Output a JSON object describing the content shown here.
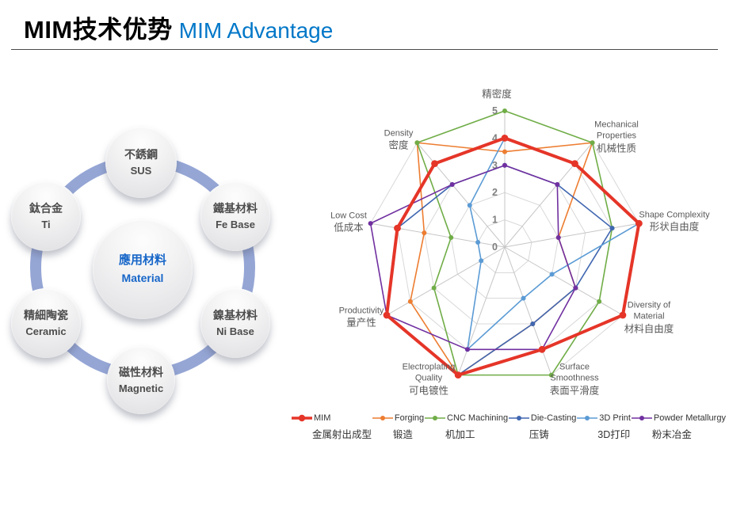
{
  "header": {
    "title_zh": "MIM技术优势",
    "title_en": "MIM Advantage"
  },
  "material_diagram": {
    "center": {
      "zh": "應用材料",
      "en": "Material"
    },
    "bubbles": [
      {
        "zh": "不銹鋼",
        "en": "SUS"
      },
      {
        "zh": "鐵基材料",
        "en": "Fe Base"
      },
      {
        "zh": "鎳基材料",
        "en": "Ni Base"
      },
      {
        "zh": "磁性材料",
        "en": "Magnetic"
      },
      {
        "zh": "精細陶瓷",
        "en": "Ceramic"
      },
      {
        "zh": "鈦合金",
        "en": "Ti"
      }
    ]
  },
  "chart_data": {
    "type": "radar",
    "axes": [
      {
        "en": "",
        "zh": "精密度"
      },
      {
        "en": "Mechanical Properties",
        "zh": "机械性质"
      },
      {
        "en": "Shape Complexity",
        "zh": "形状自由度"
      },
      {
        "en": "Diversity of Material",
        "zh": "材料自由度"
      },
      {
        "en": "Surface Smoothness",
        "zh": "表面平滑度"
      },
      {
        "en": "Electroplating Quality",
        "zh": "可电镀性"
      },
      {
        "en": "Productivity",
        "zh": "量产性"
      },
      {
        "en": "Low Cost",
        "zh": "低成本"
      },
      {
        "en": "Density",
        "zh": "密度"
      }
    ],
    "scale": {
      "min": 0,
      "max": 5,
      "ticks": [
        0,
        1,
        2,
        3,
        4,
        5
      ]
    },
    "grid_color": "#D8D8D8",
    "spoke_color": "#C6C6C6",
    "tick_color": "#7F7F7F",
    "series": [
      {
        "name_en": "MIM",
        "name_zh": "金属射出成型",
        "color": "#E53528",
        "width": 4,
        "values": [
          4,
          4,
          5,
          5,
          4,
          5,
          5,
          4,
          4
        ]
      },
      {
        "name_en": "Forging",
        "name_zh": "锻造",
        "color": "#ED7D31",
        "width": 1.6,
        "values": [
          3.5,
          5,
          2,
          3,
          3,
          5,
          4,
          3,
          5
        ]
      },
      {
        "name_en": "CNC Machining",
        "name_zh": "机加工",
        "color": "#70AD47",
        "width": 1.6,
        "values": [
          5,
          5,
          4,
          4,
          5,
          5,
          3,
          2,
          5
        ]
      },
      {
        "name_en": "Die-Casting",
        "name_zh": "压铸",
        "color": "#4067B1",
        "width": 1.6,
        "values": [
          3,
          3,
          4,
          3,
          3,
          5,
          5,
          4,
          3
        ]
      },
      {
        "name_en": "3D Print",
        "name_zh": "3D打印",
        "color": "#5B9BD5",
        "width": 1.6,
        "values": [
          4,
          4,
          5,
          2,
          2,
          4,
          1,
          1,
          2
        ]
      },
      {
        "name_en": "Powder Metallurgy",
        "name_zh": "粉末冶金",
        "color": "#7030A0",
        "width": 1.6,
        "values": [
          3,
          3,
          2,
          3,
          4,
          4,
          5,
          5,
          3
        ]
      }
    ]
  }
}
